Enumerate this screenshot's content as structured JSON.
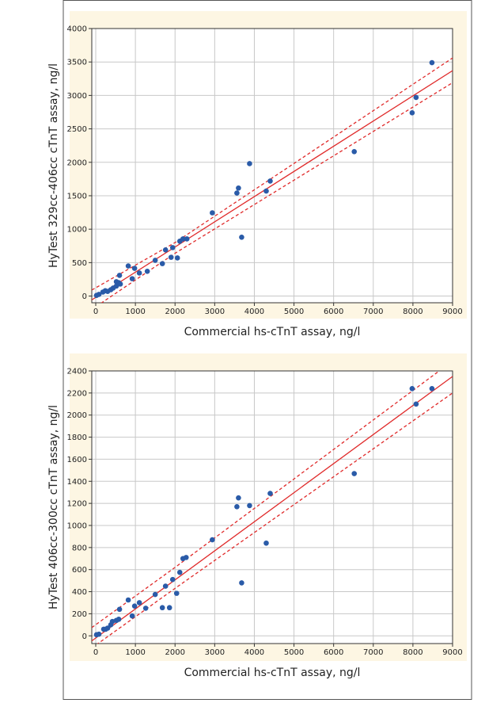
{
  "chart_data": [
    {
      "type": "scatter",
      "x_label": "Commercial hs-cTnT assay, ng/l",
      "y_label": "HyTest 329cc-406cc cTnT assay, ng/l",
      "xlim": [
        -100,
        9000
      ],
      "ylim": [
        -100,
        4000
      ],
      "xticks": [
        0,
        1000,
        2000,
        3000,
        4000,
        5000,
        6000,
        7000,
        8000,
        9000
      ],
      "yticks": [
        0,
        500,
        1000,
        1500,
        2000,
        2500,
        3000,
        3500,
        4000
      ],
      "grid": true,
      "series": [
        {
          "color": "#2a5ba8",
          "x": [
            20,
            80,
            180,
            240,
            300,
            380,
            440,
            520,
            520,
            580,
            600,
            620,
            820,
            920,
            980,
            1100,
            1300,
            1500,
            1680,
            1760,
            1900,
            1940,
            2060,
            2120,
            2200,
            2300,
            2940,
            3560,
            3600,
            3680,
            3880,
            4300,
            4400,
            6520,
            7980,
            8080,
            8480
          ],
          "values": [
            10,
            25,
            60,
            80,
            70,
            95,
            120,
            215,
            150,
            200,
            310,
            180,
            450,
            260,
            415,
            345,
            370,
            535,
            485,
            690,
            580,
            725,
            570,
            820,
            855,
            855,
            1245,
            1540,
            1615,
            880,
            1980,
            1570,
            1720,
            2160,
            2740,
            2970,
            3490
          ]
        }
      ],
      "lines": [
        {
          "color": "#e02a2a",
          "dashed": false,
          "x": [
            -100,
            9000
          ],
          "values": [
            -57,
            3370
          ]
        },
        {
          "color": "#e02a2a",
          "dashed": true,
          "x": [
            -100,
            2000,
            9000
          ],
          "values": [
            90,
            800,
            3560
          ]
        },
        {
          "color": "#e02a2a",
          "dashed": true,
          "x": [
            -100,
            2000,
            9000
          ],
          "values": [
            -200,
            640,
            3190
          ]
        }
      ]
    },
    {
      "type": "scatter",
      "x_label": "Commercial hs-cTnT assay, ng/l",
      "y_label": "HyTest 406cc-300cc cTnT assay, ng/l",
      "xlim": [
        -100,
        9000
      ],
      "ylim": [
        -70,
        2400
      ],
      "xticks": [
        0,
        1000,
        2000,
        3000,
        4000,
        5000,
        6000,
        7000,
        8000,
        9000
      ],
      "yticks": [
        0,
        200,
        400,
        600,
        800,
        1000,
        1200,
        1400,
        1600,
        1800,
        2000,
        2200,
        2400
      ],
      "grid": true,
      "series": [
        {
          "color": "#2a5ba8",
          "x": [
            20,
            80,
            200,
            250,
            300,
            380,
            420,
            520,
            580,
            600,
            820,
            920,
            980,
            1100,
            1260,
            1500,
            1680,
            1760,
            1860,
            1940,
            2040,
            2120,
            2200,
            2280,
            2940,
            3560,
            3600,
            3680,
            3880,
            4300,
            4400,
            6520,
            7980,
            8080,
            8480
          ],
          "values": [
            10,
            15,
            60,
            60,
            70,
            100,
            130,
            140,
            150,
            240,
            325,
            180,
            270,
            300,
            250,
            375,
            255,
            450,
            255,
            510,
            385,
            575,
            700,
            710,
            870,
            1170,
            1250,
            480,
            1180,
            840,
            1290,
            1470,
            2240,
            2100,
            2240
          ]
        }
      ],
      "lines": [
        {
          "color": "#e02a2a",
          "dashed": false,
          "x": [
            -100,
            9000
          ],
          "values": [
            -46,
            2350
          ]
        },
        {
          "color": "#e02a2a",
          "dashed": true,
          "x": [
            -100,
            2000,
            9000
          ],
          "values": [
            75,
            620,
            2490
          ]
        },
        {
          "color": "#e02a2a",
          "dashed": true,
          "x": [
            -100,
            2000,
            9000
          ],
          "values": [
            -110,
            430,
            2200
          ]
        }
      ]
    }
  ]
}
